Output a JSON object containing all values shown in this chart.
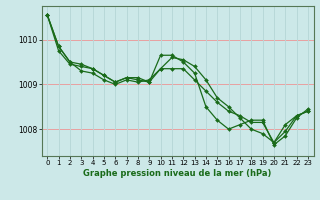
{
  "title": "Graphe pression niveau de la mer (hPa)",
  "background_color": "#cce8e8",
  "grid_color_h": "#e8a0a0",
  "grid_color_v": "#b8d8d8",
  "line_color": "#1a6b1a",
  "xlim": [
    -0.5,
    23.5
  ],
  "ylim": [
    1007.4,
    1010.75
  ],
  "yticks": [
    1008,
    1009,
    1010
  ],
  "xticks": [
    0,
    1,
    2,
    3,
    4,
    5,
    6,
    7,
    8,
    9,
    10,
    11,
    12,
    13,
    14,
    15,
    16,
    17,
    18,
    19,
    20,
    21,
    22,
    23
  ],
  "series": [
    [
      1010.55,
      1009.85,
      1009.5,
      1009.45,
      1009.35,
      1009.2,
      1009.05,
      1009.15,
      1009.1,
      1009.05,
      1009.35,
      1009.35,
      1009.35,
      1009.1,
      1008.85,
      1008.6,
      1008.4,
      1008.3,
      1008.15,
      1008.15,
      1007.7,
      1008.1,
      1008.3,
      1008.4
    ],
    [
      1010.55,
      1009.85,
      1009.5,
      1009.3,
      1009.25,
      1009.1,
      1009.0,
      1009.1,
      1009.05,
      1009.1,
      1009.35,
      1009.6,
      1009.55,
      1009.4,
      1009.1,
      1008.7,
      1008.5,
      1008.25,
      1008.0,
      1007.9,
      1007.7,
      1007.95,
      1008.3,
      1008.4
    ],
    [
      1010.55,
      1009.75,
      1009.45,
      1009.4,
      1009.35,
      1009.2,
      1009.05,
      1009.15,
      1009.15,
      1009.05,
      1009.65,
      1009.65,
      1009.5,
      1009.25,
      1008.5,
      1008.2,
      1008.0,
      1008.1,
      1008.2,
      1008.2,
      1007.65,
      1007.85,
      1008.25,
      1008.45
    ]
  ]
}
